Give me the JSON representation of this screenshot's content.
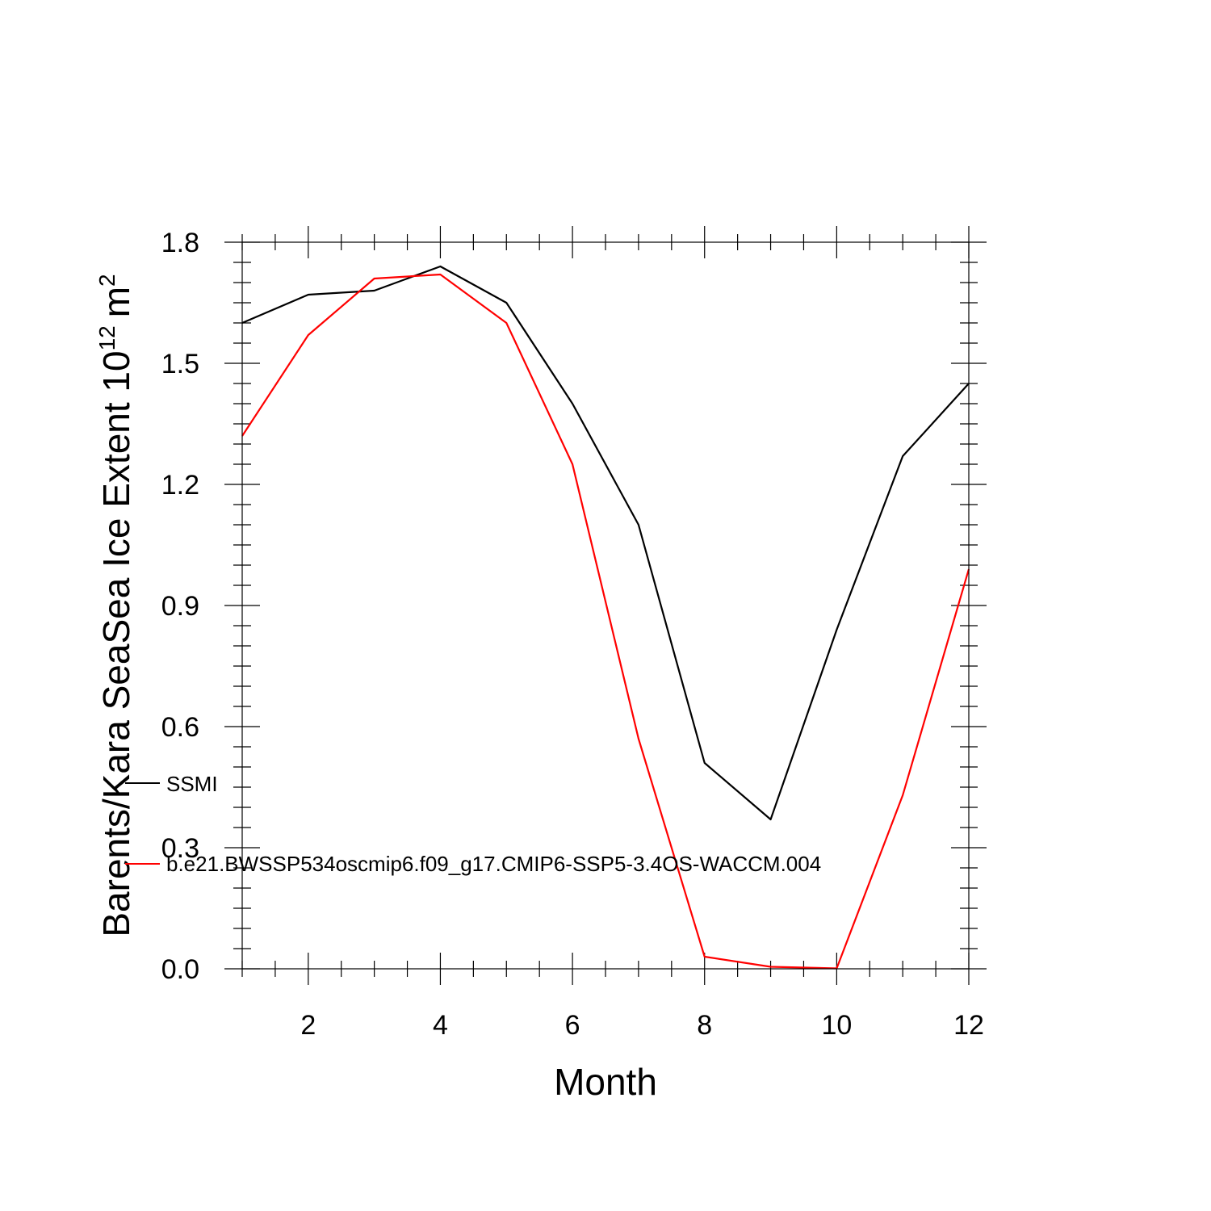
{
  "chart_data": {
    "type": "line",
    "xlabel": "Month",
    "ylabel": {
      "main": "Barents/Kara SeaSea Ice Extent 10",
      "exponent": "12",
      "unit": "m",
      "unit_exponent": "2"
    },
    "xlim": [
      1,
      12
    ],
    "ylim": [
      0.0,
      1.8
    ],
    "x_ticks": [
      2,
      4,
      6,
      8,
      10,
      12
    ],
    "x_tick_labels": [
      "2",
      "4",
      "6",
      "8",
      "10",
      "12"
    ],
    "y_ticks": [
      0.0,
      0.3,
      0.6,
      0.9,
      1.2,
      1.5,
      1.8
    ],
    "y_tick_labels": [
      "0.0",
      "0.3",
      "0.6",
      "0.9",
      "1.2",
      "1.5",
      "1.8"
    ],
    "grid": false,
    "legend_placement": "left, inside plot",
    "x": [
      1,
      2,
      3,
      4,
      5,
      6,
      7,
      8,
      9,
      10,
      11,
      12
    ],
    "series": [
      {
        "name": "SSMI",
        "color": "#000000",
        "values": [
          1.6,
          1.67,
          1.68,
          1.74,
          1.65,
          1.4,
          1.1,
          0.51,
          0.37,
          0.84,
          1.27,
          1.45
        ]
      },
      {
        "name": "b.e21.BWSSP534oscmip6.f09_g17.CMIP6-SSP5-3.4OS-WACCM.004",
        "color": "#ff0000",
        "values": [
          1.32,
          1.57,
          1.71,
          1.72,
          1.6,
          1.25,
          0.57,
          0.03,
          0.005,
          0.001,
          0.43,
          0.99
        ]
      }
    ]
  }
}
